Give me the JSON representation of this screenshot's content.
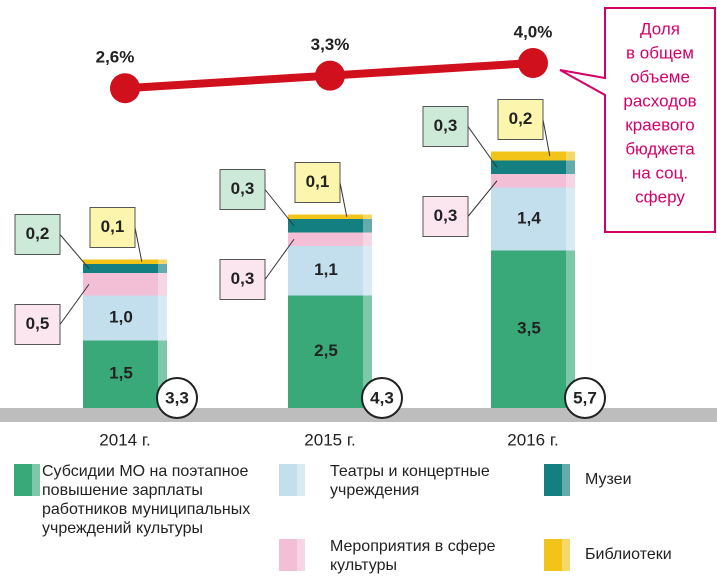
{
  "chart_data": {
    "type": "bar",
    "stacked": true,
    "categories": [
      "2014 г.",
      "2015 г.",
      "2016 г."
    ],
    "series": [
      {
        "name": "Субсидии МО на поэтапное повышение зарплаты работников муниципальных учреждений культуры",
        "color": "#3aa97a",
        "values": [
          1.5,
          2.5,
          3.5
        ],
        "value_labels": [
          "1,5",
          "2,5",
          "3,5"
        ]
      },
      {
        "name": "Театры и концертные учреждения",
        "color": "#c3dfee",
        "values": [
          1.0,
          1.1,
          1.4
        ],
        "value_labels": [
          "1,0",
          "1,1",
          "1,4"
        ]
      },
      {
        "name": "Мероприятия в сфере культуры",
        "color": "#f2bfd6",
        "values": [
          0.5,
          0.3,
          0.3
        ],
        "value_labels": [
          "0,5",
          "0,3",
          "0,3"
        ]
      },
      {
        "name": "Музеи",
        "color": "#137f80",
        "values": [
          0.2,
          0.3,
          0.3
        ],
        "value_labels": [
          "0,2",
          "0,3",
          "0,3"
        ]
      },
      {
        "name": "Библиотеки",
        "color": "#f2c318",
        "values": [
          0.1,
          0.1,
          0.2
        ],
        "value_labels": [
          "0,1",
          "0,1",
          "0,2"
        ]
      }
    ],
    "totals": [
      3.3,
      4.3,
      5.7
    ],
    "total_labels": [
      "3,3",
      "4,3",
      "5,7"
    ],
    "share": {
      "type": "line",
      "color": "#d0101c",
      "values": [
        2.6,
        3.3,
        4.0
      ],
      "value_labels": [
        "2,6%",
        "3,3%",
        "4,0%"
      ]
    },
    "annotation": [
      "Доля",
      "в общем",
      "объеме",
      "расходов",
      "краевого",
      "бюджета",
      "на соц.",
      "сферу"
    ]
  }
}
